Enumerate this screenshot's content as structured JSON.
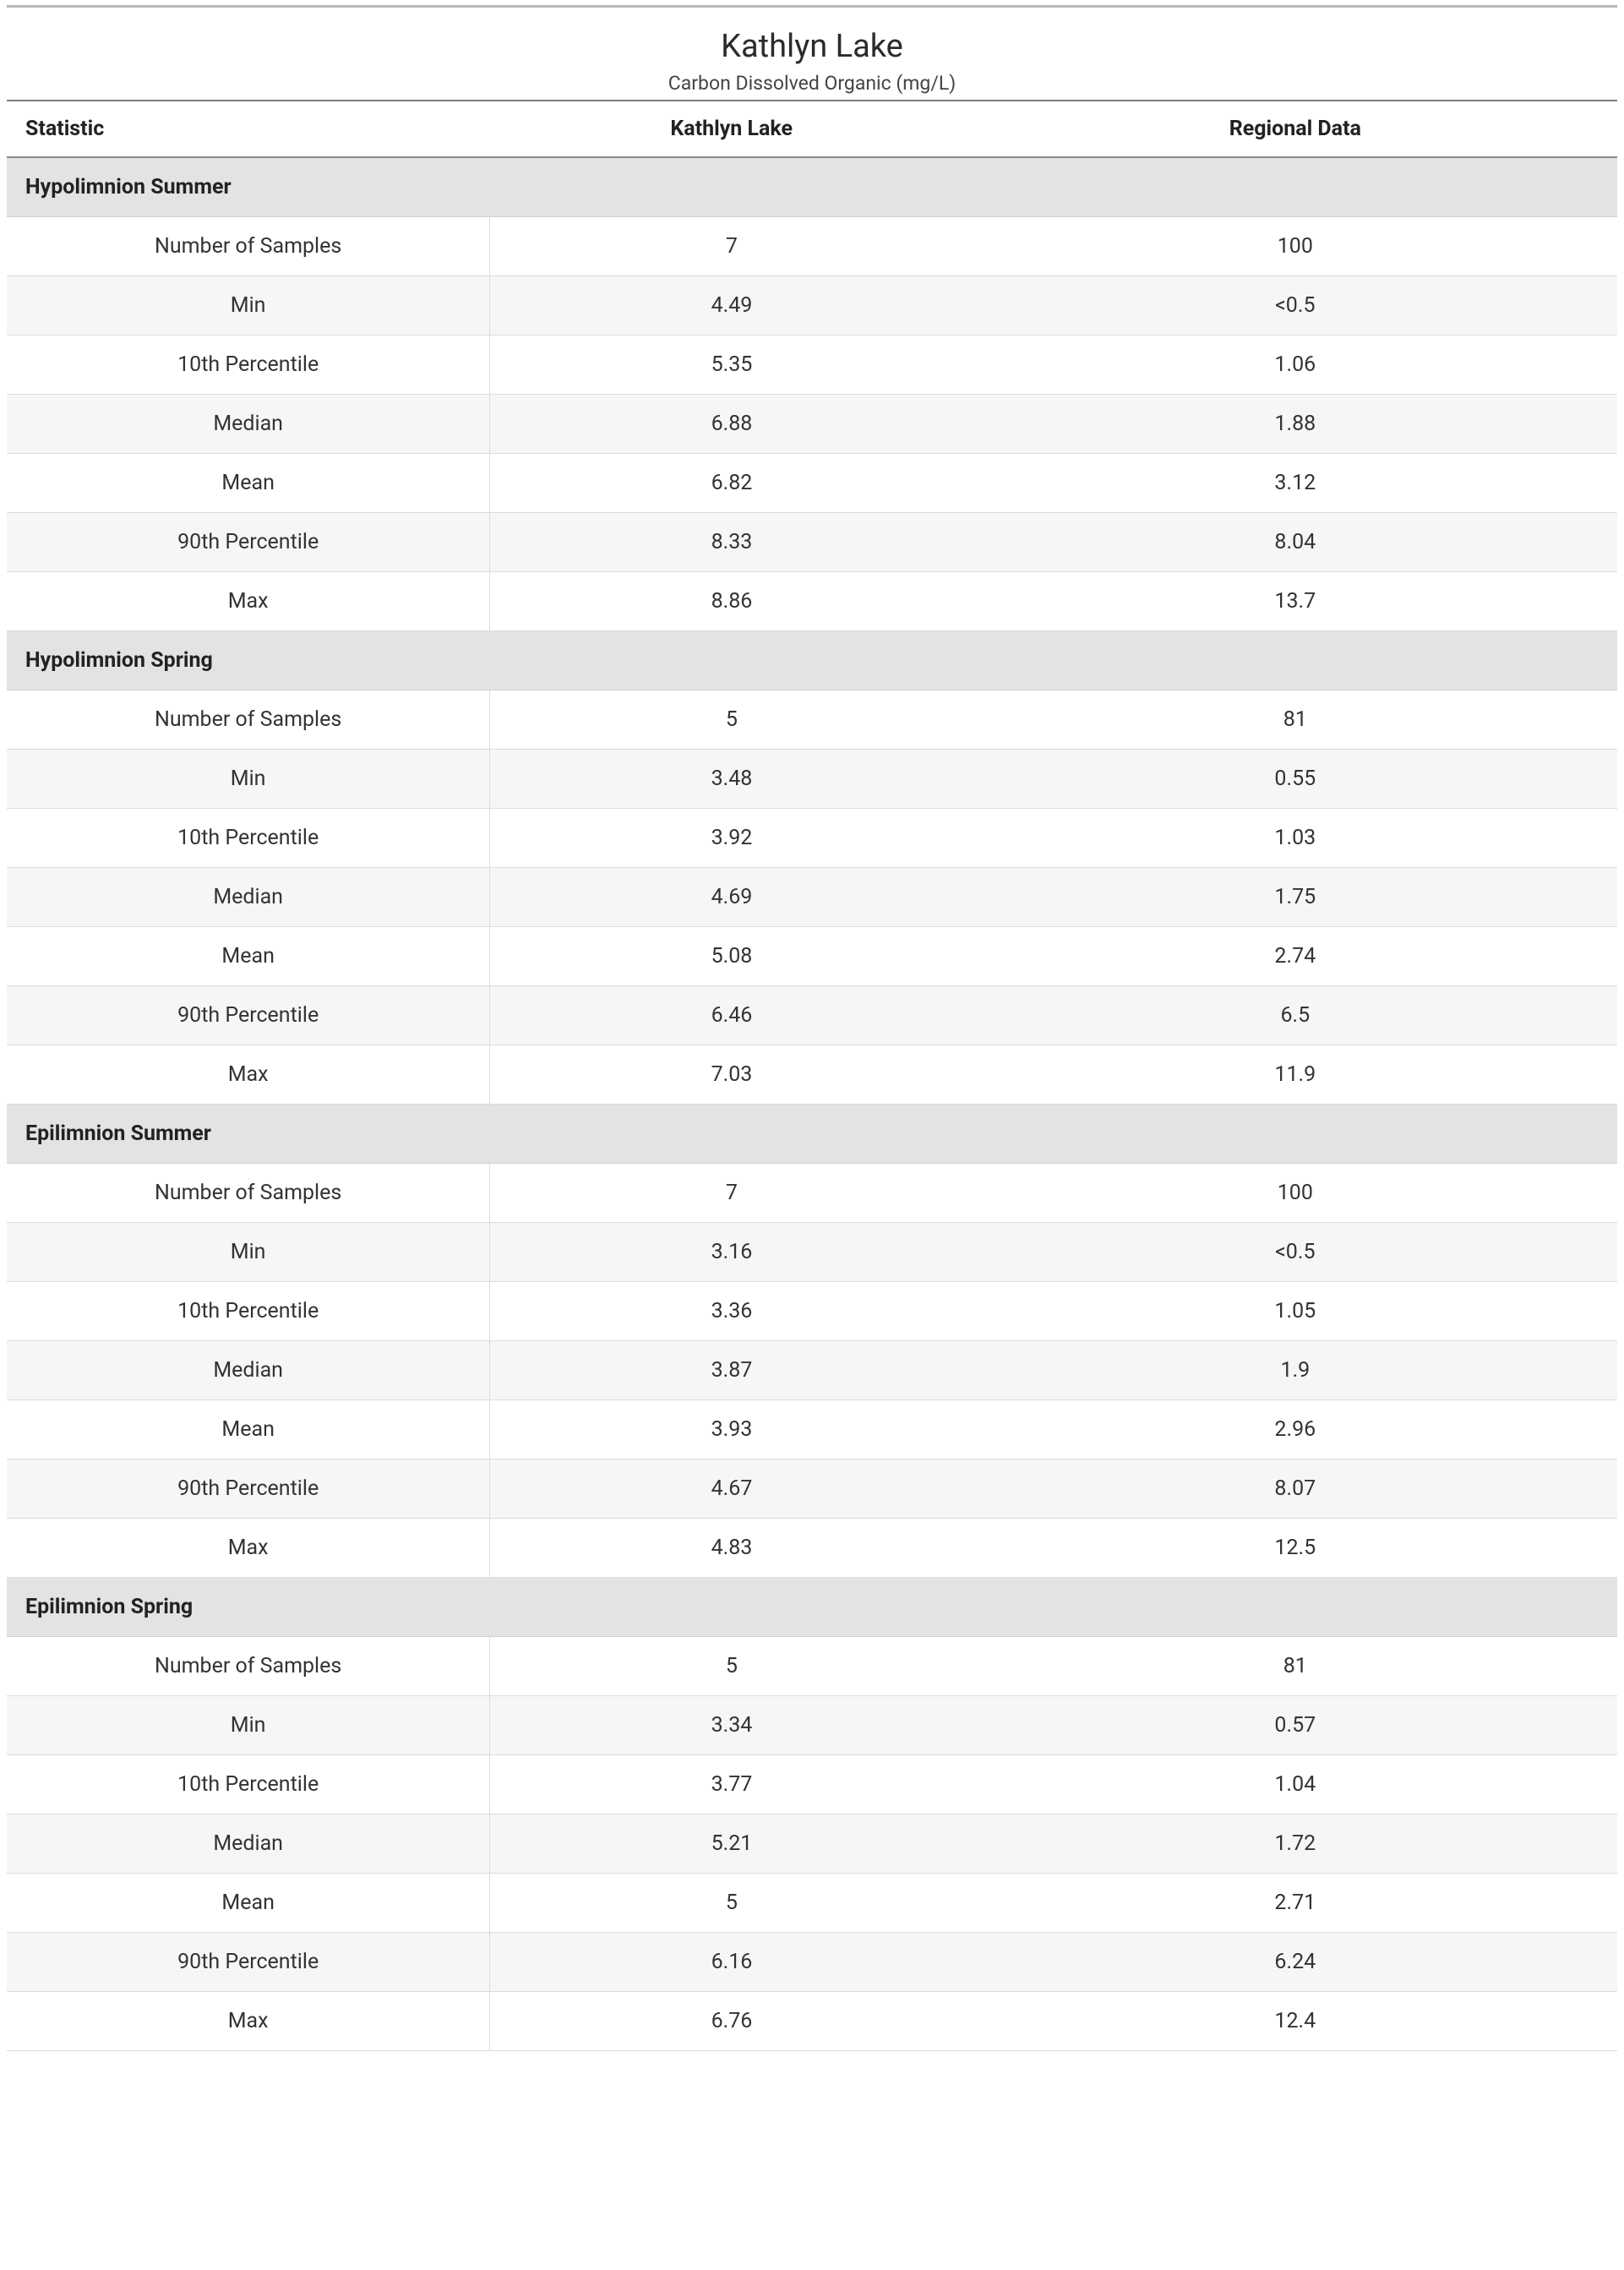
{
  "title": "Kathlyn Lake",
  "subtitle": "Carbon Dissolved Organic (mg/L)",
  "columns": [
    "Statistic",
    "Kathlyn Lake",
    "Regional Data"
  ],
  "colors": {
    "top_rule": "#b9b9b9",
    "header_rule": "#7d7d7d",
    "section_bg": "#e3e3e3",
    "row_alt_bg": "#f6f6f6",
    "border": "#dcdcdc",
    "text": "#333333"
  },
  "sections": [
    {
      "name": "Hypolimnion Summer",
      "rows": [
        [
          "Number of Samples",
          "7",
          "100"
        ],
        [
          "Min",
          "4.49",
          "<0.5"
        ],
        [
          "10th Percentile",
          "5.35",
          "1.06"
        ],
        [
          "Median",
          "6.88",
          "1.88"
        ],
        [
          "Mean",
          "6.82",
          "3.12"
        ],
        [
          "90th Percentile",
          "8.33",
          "8.04"
        ],
        [
          "Max",
          "8.86",
          "13.7"
        ]
      ]
    },
    {
      "name": "Hypolimnion Spring",
      "rows": [
        [
          "Number of Samples",
          "5",
          "81"
        ],
        [
          "Min",
          "3.48",
          "0.55"
        ],
        [
          "10th Percentile",
          "3.92",
          "1.03"
        ],
        [
          "Median",
          "4.69",
          "1.75"
        ],
        [
          "Mean",
          "5.08",
          "2.74"
        ],
        [
          "90th Percentile",
          "6.46",
          "6.5"
        ],
        [
          "Max",
          "7.03",
          "11.9"
        ]
      ]
    },
    {
      "name": "Epilimnion Summer",
      "rows": [
        [
          "Number of Samples",
          "7",
          "100"
        ],
        [
          "Min",
          "3.16",
          "<0.5"
        ],
        [
          "10th Percentile",
          "3.36",
          "1.05"
        ],
        [
          "Median",
          "3.87",
          "1.9"
        ],
        [
          "Mean",
          "3.93",
          "2.96"
        ],
        [
          "90th Percentile",
          "4.67",
          "8.07"
        ],
        [
          "Max",
          "4.83",
          "12.5"
        ]
      ]
    },
    {
      "name": "Epilimnion Spring",
      "rows": [
        [
          "Number of Samples",
          "5",
          "81"
        ],
        [
          "Min",
          "3.34",
          "0.57"
        ],
        [
          "10th Percentile",
          "3.77",
          "1.04"
        ],
        [
          "Median",
          "5.21",
          "1.72"
        ],
        [
          "Mean",
          "5",
          "2.71"
        ],
        [
          "90th Percentile",
          "6.16",
          "6.24"
        ],
        [
          "Max",
          "6.76",
          "12.4"
        ]
      ]
    }
  ]
}
